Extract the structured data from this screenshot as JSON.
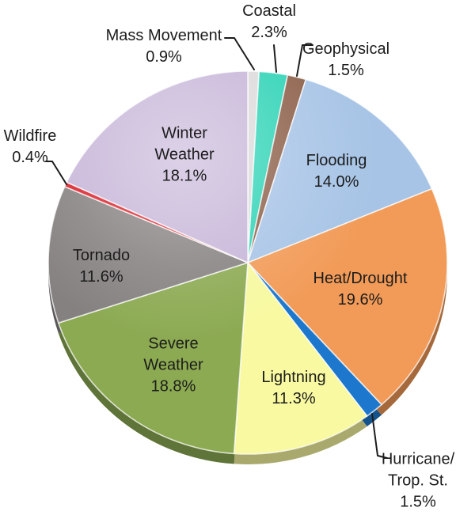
{
  "chart_data": {
    "type": "pie",
    "title": "",
    "value_format": "percent",
    "total": 100.0,
    "start_angle": "12 o'clock",
    "direction": "clockwise",
    "effect": "3d-beveled",
    "slices": [
      {
        "id": "mass-movement",
        "label": "Mass Movement",
        "label_lines": [
          "Mass Movement"
        ],
        "value": 0.9,
        "pct_text": "0.9%",
        "color": "#dcdada",
        "label_placement": "outside-callout"
      },
      {
        "id": "coastal",
        "label": "Coastal",
        "label_lines": [
          "Coastal"
        ],
        "value": 2.3,
        "pct_text": "2.3%",
        "color": "#2ed3b6",
        "label_placement": "outside-callout"
      },
      {
        "id": "geophysical",
        "label": "Geophysical",
        "label_lines": [
          "Geophysical"
        ],
        "value": 1.5,
        "pct_text": "1.5%",
        "color": "#8d604a",
        "label_placement": "outside-callout"
      },
      {
        "id": "flooding",
        "label": "Flooding",
        "label_lines": [
          "Flooding"
        ],
        "value": 14.0,
        "pct_text": "14.0%",
        "color": "#a7c4e6",
        "label_placement": "inside"
      },
      {
        "id": "heat-drought",
        "label": "Heat/Drought",
        "label_lines": [
          "Heat/Drought"
        ],
        "value": 19.6,
        "pct_text": "19.6%",
        "color": "#f29b58",
        "label_placement": "inside"
      },
      {
        "id": "hurricane",
        "label": "Hurricane/Trop. St.",
        "label_lines": [
          "Hurricane/",
          "Trop. St."
        ],
        "value": 1.5,
        "pct_text": "1.5%",
        "color": "#1d78cd",
        "label_placement": "outside-callout"
      },
      {
        "id": "lightning",
        "label": "Lightning",
        "label_lines": [
          "Lightning"
        ],
        "value": 11.3,
        "pct_text": "11.3%",
        "color": "#f8f9a0",
        "label_placement": "inside"
      },
      {
        "id": "severe-weather",
        "label": "Severe Weather",
        "label_lines": [
          "Severe",
          "Weather"
        ],
        "value": 18.8,
        "pct_text": "18.8%",
        "color": "#8caa52",
        "label_placement": "inside"
      },
      {
        "id": "tornado",
        "label": "Tornado",
        "label_lines": [
          "Tornado"
        ],
        "value": 11.6,
        "pct_text": "11.6%",
        "color": "#868181",
        "label_placement": "inside"
      },
      {
        "id": "wildfire",
        "label": "Wildfire",
        "label_lines": [
          "Wildfire"
        ],
        "value": 0.4,
        "pct_text": "0.4%",
        "color": "#d92028",
        "label_placement": "outside-callout"
      },
      {
        "id": "winter-weather",
        "label": "Winter Weather",
        "label_lines": [
          "Winter",
          "Weather"
        ],
        "value": 18.1,
        "pct_text": "18.1%",
        "color": "#c6b5d8",
        "label_placement": "inside"
      }
    ]
  }
}
